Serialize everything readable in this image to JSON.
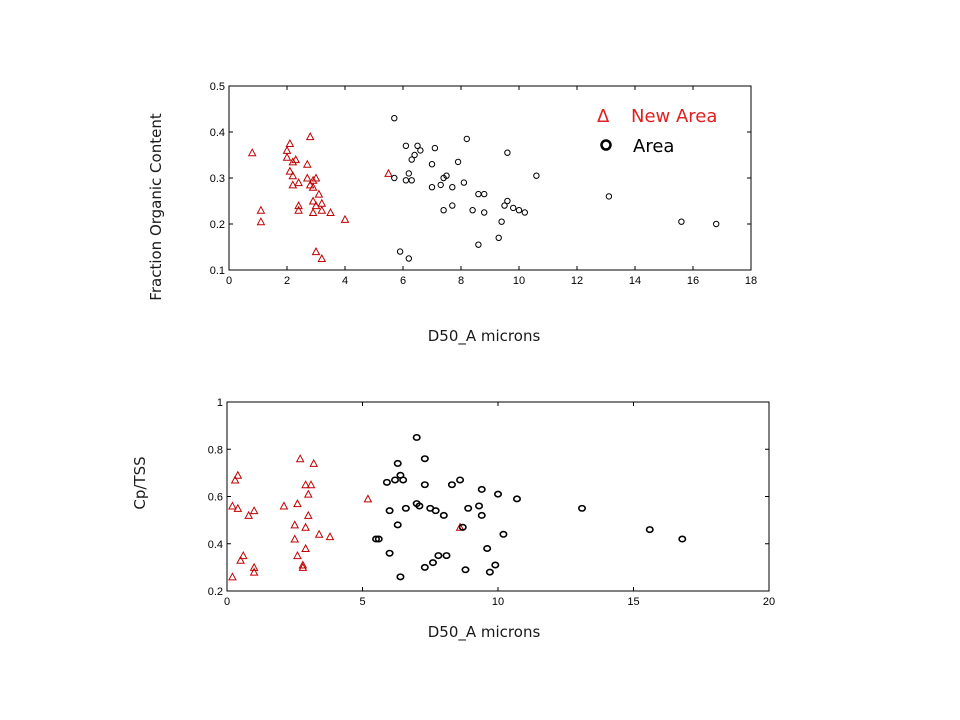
{
  "colors": {
    "new_area": "#c00000",
    "area": "#000000",
    "legend_new": "#e02020"
  },
  "chart_data": [
    {
      "type": "scatter",
      "xlabel": "D50_A microns",
      "ylabel": "Fraction Organic Content",
      "xlim": [
        0,
        18
      ],
      "ylim": [
        0.1,
        0.5
      ],
      "xticks": [
        "0",
        "2",
        "4",
        "6",
        "8",
        "10",
        "12",
        "14",
        "16",
        "18"
      ],
      "yticks": [
        "0.1",
        "0.2",
        "0.3",
        "0.4",
        "0.5"
      ],
      "legend": {
        "placement": "top-right",
        "new_area_symbol": "Δ",
        "new_area_label": "New Area",
        "area_label": "Area"
      },
      "series": [
        {
          "name": "New Area",
          "marker": "triangle",
          "points": [
            [
              0.8,
              0.355
            ],
            [
              1.1,
              0.23
            ],
            [
              1.1,
              0.205
            ],
            [
              2.0,
              0.36
            ],
            [
              2.1,
              0.375
            ],
            [
              2.0,
              0.345
            ],
            [
              2.2,
              0.335
            ],
            [
              2.3,
              0.34
            ],
            [
              2.1,
              0.315
            ],
            [
              2.2,
              0.305
            ],
            [
              2.2,
              0.285
            ],
            [
              2.4,
              0.29
            ],
            [
              2.4,
              0.24
            ],
            [
              2.4,
              0.23
            ],
            [
              2.7,
              0.33
            ],
            [
              2.8,
              0.39
            ],
            [
              2.7,
              0.3
            ],
            [
              2.9,
              0.295
            ],
            [
              2.8,
              0.285
            ],
            [
              2.9,
              0.28
            ],
            [
              3.0,
              0.3
            ],
            [
              2.9,
              0.25
            ],
            [
              3.0,
              0.24
            ],
            [
              2.9,
              0.225
            ],
            [
              3.1,
              0.265
            ],
            [
              3.2,
              0.245
            ],
            [
              3.2,
              0.23
            ],
            [
              3.5,
              0.225
            ],
            [
              4.0,
              0.21
            ],
            [
              3.0,
              0.14
            ],
            [
              3.2,
              0.125
            ],
            [
              5.5,
              0.31
            ]
          ]
        },
        {
          "name": "Area",
          "marker": "circle",
          "points": [
            [
              5.7,
              0.43
            ],
            [
              5.7,
              0.3
            ],
            [
              5.9,
              0.14
            ],
            [
              6.1,
              0.37
            ],
            [
              6.1,
              0.295
            ],
            [
              6.2,
              0.31
            ],
            [
              6.3,
              0.295
            ],
            [
              6.3,
              0.34
            ],
            [
              6.4,
              0.35
            ],
            [
              6.5,
              0.37
            ],
            [
              6.6,
              0.36
            ],
            [
              6.2,
              0.125
            ],
            [
              7.0,
              0.33
            ],
            [
              7.0,
              0.28
            ],
            [
              7.1,
              0.365
            ],
            [
              7.3,
              0.285
            ],
            [
              7.4,
              0.3
            ],
            [
              7.4,
              0.23
            ],
            [
              7.5,
              0.305
            ],
            [
              7.7,
              0.28
            ],
            [
              7.7,
              0.24
            ],
            [
              7.9,
              0.335
            ],
            [
              8.1,
              0.29
            ],
            [
              8.2,
              0.385
            ],
            [
              8.4,
              0.23
            ],
            [
              8.6,
              0.265
            ],
            [
              8.6,
              0.155
            ],
            [
              8.8,
              0.225
            ],
            [
              8.8,
              0.265
            ],
            [
              9.3,
              0.17
            ],
            [
              9.4,
              0.205
            ],
            [
              9.5,
              0.24
            ],
            [
              9.6,
              0.25
            ],
            [
              9.6,
              0.355
            ],
            [
              9.8,
              0.235
            ],
            [
              10.0,
              0.23
            ],
            [
              10.2,
              0.225
            ],
            [
              10.6,
              0.305
            ],
            [
              13.1,
              0.26
            ],
            [
              15.6,
              0.205
            ],
            [
              16.8,
              0.2
            ]
          ]
        }
      ]
    },
    {
      "type": "scatter",
      "xlabel": "D50_A microns",
      "ylabel": "Cp/TSS",
      "xlim": [
        0,
        20
      ],
      "ylim": [
        0.2,
        1.0
      ],
      "xticks": [
        "0",
        "5",
        "10",
        "15",
        "20"
      ],
      "yticks": [
        "0.2",
        "0.4",
        "0.6",
        "0.8",
        "1"
      ],
      "series": [
        {
          "name": "New Area",
          "marker": "triangle",
          "points": [
            [
              0.2,
              0.26
            ],
            [
              0.2,
              0.56
            ],
            [
              0.3,
              0.67
            ],
            [
              0.4,
              0.69
            ],
            [
              0.4,
              0.55
            ],
            [
              0.5,
              0.33
            ],
            [
              0.6,
              0.35
            ],
            [
              0.8,
              0.52
            ],
            [
              1.0,
              0.54
            ],
            [
              1.0,
              0.3
            ],
            [
              1.0,
              0.28
            ],
            [
              2.1,
              0.56
            ],
            [
              2.5,
              0.48
            ],
            [
              2.5,
              0.42
            ],
            [
              2.6,
              0.35
            ],
            [
              2.6,
              0.57
            ],
            [
              2.7,
              0.76
            ],
            [
              2.8,
              0.31
            ],
            [
              2.8,
              0.3
            ],
            [
              2.9,
              0.38
            ],
            [
              2.9,
              0.47
            ],
            [
              2.9,
              0.65
            ],
            [
              3.0,
              0.61
            ],
            [
              3.0,
              0.52
            ],
            [
              3.1,
              0.65
            ],
            [
              3.2,
              0.74
            ],
            [
              3.4,
              0.44
            ],
            [
              3.8,
              0.43
            ],
            [
              5.2,
              0.59
            ],
            [
              8.6,
              0.47
            ]
          ]
        },
        {
          "name": "Area",
          "marker": "circle",
          "points": [
            [
              5.5,
              0.42
            ],
            [
              5.6,
              0.42
            ],
            [
              5.9,
              0.66
            ],
            [
              6.0,
              0.54
            ],
            [
              6.0,
              0.36
            ],
            [
              6.2,
              0.67
            ],
            [
              6.3,
              0.74
            ],
            [
              6.3,
              0.48
            ],
            [
              6.4,
              0.26
            ],
            [
              6.4,
              0.69
            ],
            [
              6.5,
              0.67
            ],
            [
              6.6,
              0.55
            ],
            [
              7.0,
              0.85
            ],
            [
              7.0,
              0.57
            ],
            [
              7.1,
              0.56
            ],
            [
              7.3,
              0.76
            ],
            [
              7.3,
              0.65
            ],
            [
              7.3,
              0.3
            ],
            [
              7.5,
              0.55
            ],
            [
              7.6,
              0.32
            ],
            [
              7.7,
              0.54
            ],
            [
              7.8,
              0.35
            ],
            [
              8.0,
              0.52
            ],
            [
              8.1,
              0.35
            ],
            [
              8.3,
              0.65
            ],
            [
              8.6,
              0.67
            ],
            [
              8.7,
              0.47
            ],
            [
              8.8,
              0.29
            ],
            [
              8.9,
              0.55
            ],
            [
              9.3,
              0.56
            ],
            [
              9.4,
              0.52
            ],
            [
              9.4,
              0.63
            ],
            [
              9.6,
              0.38
            ],
            [
              9.7,
              0.28
            ],
            [
              9.9,
              0.31
            ],
            [
              10.0,
              0.61
            ],
            [
              10.2,
              0.44
            ],
            [
              10.7,
              0.59
            ],
            [
              13.1,
              0.55
            ],
            [
              15.6,
              0.46
            ],
            [
              16.8,
              0.42
            ]
          ]
        }
      ]
    }
  ]
}
